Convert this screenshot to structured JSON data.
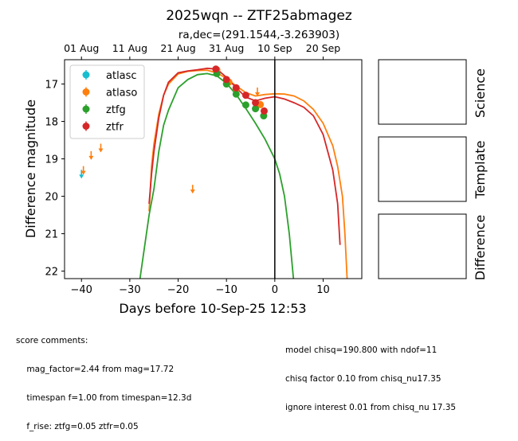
{
  "chart_data": {
    "type": "scatter",
    "title": "2025wqn -- ZTF25abmagez",
    "subtitle": "ra,dec=(291.1544,-3.263903)",
    "xlabel": "Days before 10-Sep-25 12:53",
    "ylabel": "Difference magnitude",
    "xlim": [
      -43.5,
      18
    ],
    "ylim": [
      22.2,
      16.35
    ],
    "y_inverted": true,
    "x_ticks": [
      -40,
      -30,
      -20,
      -10,
      0,
      10
    ],
    "x_tick_labels": [
      "−40",
      "−30",
      "−20",
      "−10",
      "0",
      "10"
    ],
    "y_ticks": [
      17,
      18,
      19,
      20,
      21,
      22
    ],
    "y_tick_labels": [
      "17",
      "18",
      "19",
      "20",
      "21",
      "22"
    ],
    "top_axis_ticks": [
      -40,
      -30,
      -20,
      -10,
      0,
      10
    ],
    "top_axis_labels": [
      "01 Aug",
      "11 Aug",
      "21 Aug",
      "31 Aug",
      "10 Sep",
      "20 Sep"
    ],
    "vline_x": 0,
    "grid": false,
    "legend_position": "upper left",
    "series": [
      {
        "name": "atlasc",
        "color": "#17becf",
        "points": [],
        "upper_limits": [
          {
            "x": -40,
            "y": 19.4
          }
        ]
      },
      {
        "name": "atlaso",
        "color": "#ff7f0e",
        "points": [
          {
            "x": -12,
            "y": 16.62
          },
          {
            "x": -9.5,
            "y": 16.95
          },
          {
            "x": -8,
            "y": 17.12
          },
          {
            "x": -3,
            "y": 17.55
          }
        ],
        "upper_limits": [
          {
            "x": -39.6,
            "y": 19.3
          },
          {
            "x": -38,
            "y": 18.9
          },
          {
            "x": -36,
            "y": 18.7
          },
          {
            "x": -17,
            "y": 19.8
          },
          {
            "x": -3.6,
            "y": 17.2
          }
        ]
      },
      {
        "name": "ztfg",
        "color": "#2ca02c",
        "points": [
          {
            "x": -12,
            "y": 16.72
          },
          {
            "x": -10,
            "y": 17.0
          },
          {
            "x": -8,
            "y": 17.27
          },
          {
            "x": -6,
            "y": 17.56
          },
          {
            "x": -4,
            "y": 17.66
          },
          {
            "x": -2.3,
            "y": 17.85
          }
        ],
        "upper_limits": []
      },
      {
        "name": "ztfr",
        "color": "#d62728",
        "points": [
          {
            "x": -12.2,
            "y": 16.6
          },
          {
            "x": -10,
            "y": 16.88
          },
          {
            "x": -8,
            "y": 17.1
          },
          {
            "x": -6,
            "y": 17.3
          },
          {
            "x": -4,
            "y": 17.5
          },
          {
            "x": -2.2,
            "y": 17.72
          }
        ],
        "upper_limits": []
      }
    ],
    "model_curves": [
      {
        "color": "#ff7f0e",
        "x": [
          -26,
          -25.5,
          -25,
          -24,
          -23,
          -22,
          -20,
          -18,
          -16,
          -14,
          -12,
          -10,
          -8,
          -6,
          -4,
          -2,
          0,
          2,
          4,
          6,
          8,
          10,
          12,
          13,
          14,
          14.5,
          15
        ],
        "y": [
          20.4,
          19.2,
          18.6,
          17.8,
          17.3,
          17.0,
          16.73,
          16.66,
          16.64,
          16.63,
          16.7,
          16.85,
          17.05,
          17.23,
          17.32,
          17.28,
          17.26,
          17.27,
          17.32,
          17.45,
          17.68,
          18.05,
          18.65,
          19.2,
          20.0,
          21.0,
          22.3
        ]
      },
      {
        "color": "#d62728",
        "x": [
          -26,
          -25.5,
          -25,
          -24,
          -23,
          -22,
          -20,
          -18,
          -16,
          -14,
          -12,
          -10,
          -8,
          -6,
          -4,
          -2,
          0,
          2,
          4,
          6,
          8,
          10,
          12,
          13,
          13.5
        ],
        "y": [
          20.2,
          19.4,
          18.8,
          17.9,
          17.3,
          16.95,
          16.7,
          16.65,
          16.62,
          16.58,
          16.6,
          16.82,
          17.1,
          17.35,
          17.45,
          17.38,
          17.34,
          17.4,
          17.5,
          17.62,
          17.85,
          18.35,
          19.3,
          20.2,
          21.3
        ]
      },
      {
        "color": "#2ca02c",
        "x": [
          -28,
          -26,
          -25,
          -24,
          -23,
          -22,
          -20,
          -18,
          -16,
          -14,
          -12,
          -10,
          -8,
          -6,
          -4,
          -2,
          0,
          1,
          2,
          3,
          4
        ],
        "y": [
          22.3,
          20.5,
          19.8,
          18.8,
          18.1,
          17.7,
          17.1,
          16.88,
          16.75,
          16.72,
          16.78,
          16.98,
          17.28,
          17.65,
          18.05,
          18.48,
          19.0,
          19.4,
          20.0,
          21.0,
          22.4
        ]
      }
    ],
    "side_panels": [
      "Science",
      "Template",
      "Difference"
    ]
  },
  "comments_left": {
    "line1": "score comments:",
    "line2": "    mag_factor=2.44 from mag=17.72",
    "line3": "    timespan f=1.00 from timespan=12.3d",
    "line4": "    f_rise: ztfg=0.05 ztfr=0.05"
  },
  "comments_right": {
    "line1": "model chisq=190.800 with ndof=11",
    "line2": "chisq factor 0.10 from chisq_nu17.35",
    "line3": "ignore interest 0.01 from chisq_nu 17.35"
  }
}
